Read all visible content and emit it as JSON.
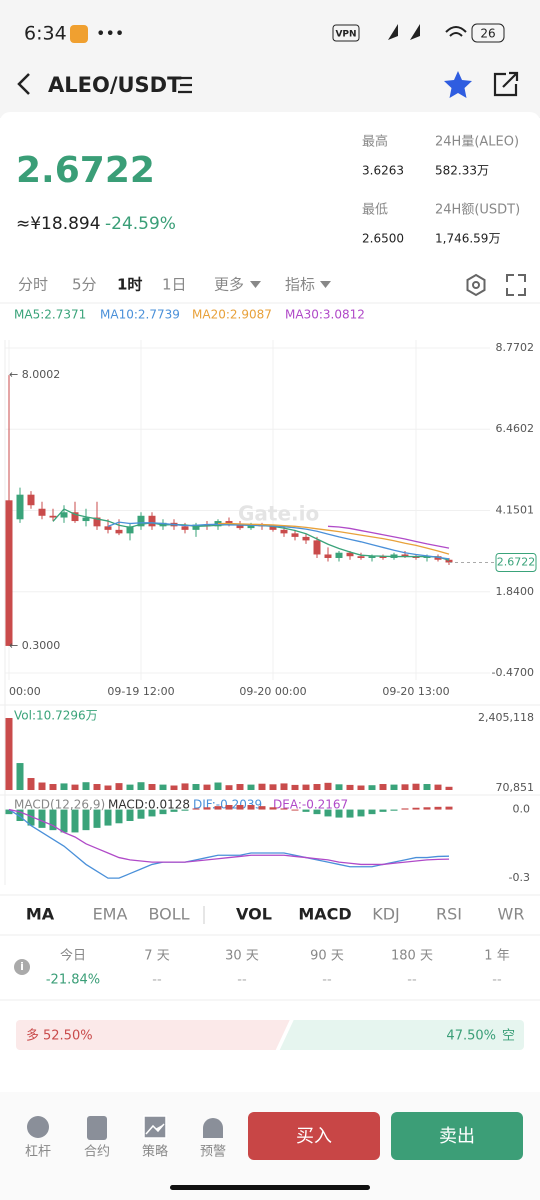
{
  "status": {
    "time": "6:34",
    "vpn": "VPN",
    "battery": "26"
  },
  "header": {
    "pair": "ALEO/USDT"
  },
  "price": {
    "last": "2.6722",
    "cny": "≈¥18.894",
    "change": "-24.59%"
  },
  "stats": [
    {
      "label": "最高",
      "value": "3.6263"
    },
    {
      "label": "24H量(ALEO)",
      "value": "582.33万"
    },
    {
      "label": "最低",
      "value": "2.6500"
    },
    {
      "label": "24H额(USDT)",
      "value": "1,746.59万"
    }
  ],
  "intervals": [
    "分时",
    "5分",
    "1时",
    "1日",
    "更多",
    "指标"
  ],
  "chart_data": [
    {
      "type": "candlestick",
      "up_color": "#3aa37a",
      "down_color": "#c94b4b",
      "ylim": [
        -0.47,
        8.7702
      ],
      "yticks": [
        8.7702,
        6.4602,
        4.1501,
        {
          "value": 1.84,
          "label": "1.8400"
        },
        {
          "value": -0.47,
          "label": "-0.4700"
        }
      ],
      "grid": true,
      "last": 2.6722,
      "watermark": "Gate.io",
      "annotations": [
        {
          "value": 8.0002,
          "label": "← 8.0002"
        },
        {
          "value": 0.3,
          "label": "← 0.3000"
        }
      ],
      "categories": [
        "00:00",
        null,
        null,
        null,
        null,
        null,
        null,
        null,
        null,
        null,
        null,
        null,
        "09-19 12:00",
        null,
        null,
        null,
        null,
        null,
        null,
        null,
        null,
        null,
        null,
        null,
        "09-20 00:00",
        null,
        null,
        null,
        null,
        null,
        null,
        null,
        null,
        null,
        null,
        null,
        null,
        "09-20 13:00",
        null,
        null,
        null
      ],
      "candles": [
        [
          4.44,
          8.0002,
          0.3,
          0.3
        ],
        [
          3.9,
          4.8,
          3.8,
          4.6
        ],
        [
          4.6,
          4.7,
          4.2,
          4.3
        ],
        [
          4.2,
          4.4,
          3.9,
          4.0
        ],
        [
          4.0,
          4.2,
          3.85,
          3.95
        ],
        [
          3.95,
          4.3,
          3.8,
          4.1
        ],
        [
          4.1,
          4.4,
          3.8,
          3.85
        ],
        [
          3.85,
          4.2,
          3.7,
          3.95
        ],
        [
          3.95,
          4.4,
          3.6,
          3.7
        ],
        [
          3.7,
          3.9,
          3.5,
          3.6
        ],
        [
          3.6,
          3.9,
          3.45,
          3.5
        ],
        [
          3.5,
          3.8,
          3.3,
          3.7
        ],
        [
          3.7,
          4.1,
          3.6,
          4.0
        ],
        [
          4.0,
          4.1,
          3.6,
          3.7
        ],
        [
          3.7,
          3.9,
          3.6,
          3.8
        ],
        [
          3.8,
          3.9,
          3.6,
          3.7
        ],
        [
          3.7,
          3.8,
          3.5,
          3.6
        ],
        [
          3.6,
          3.8,
          3.4,
          3.75
        ],
        [
          3.75,
          3.85,
          3.6,
          3.7
        ],
        [
          3.7,
          3.9,
          3.6,
          3.85
        ],
        [
          3.85,
          3.95,
          3.7,
          3.75
        ],
        [
          3.75,
          3.85,
          3.6,
          3.65
        ],
        [
          3.65,
          3.8,
          3.6,
          3.75
        ],
        [
          3.75,
          3.8,
          3.6,
          3.7
        ],
        [
          3.7,
          3.75,
          3.55,
          3.6
        ],
        [
          3.6,
          3.7,
          3.4,
          3.5
        ],
        [
          3.5,
          3.6,
          3.3,
          3.4
        ],
        [
          3.4,
          3.5,
          3.2,
          3.3
        ],
        [
          3.3,
          3.4,
          2.8,
          2.9
        ],
        [
          2.9,
          3.1,
          2.7,
          2.8
        ],
        [
          2.8,
          3.0,
          2.7,
          2.95
        ],
        [
          2.95,
          3.0,
          2.75,
          2.85
        ],
        [
          2.85,
          2.95,
          2.75,
          2.8
        ],
        [
          2.8,
          2.9,
          2.7,
          2.85
        ],
        [
          2.85,
          2.9,
          2.75,
          2.8
        ],
        [
          2.8,
          2.95,
          2.75,
          2.9
        ],
        [
          2.9,
          3.0,
          2.8,
          2.85
        ],
        [
          2.85,
          2.9,
          2.75,
          2.8
        ],
        [
          2.8,
          2.9,
          2.7,
          2.85
        ],
        [
          2.85,
          2.9,
          2.7,
          2.75
        ],
        [
          2.75,
          2.8,
          2.6,
          2.6722
        ]
      ],
      "ma": [
        {
          "label": "MA5:2.7371",
          "color": "#3aa37a",
          "values": [
            null,
            null,
            null,
            null,
            3.84,
            4.19,
            4.04,
            3.97,
            3.91,
            3.85,
            3.73,
            3.67,
            3.76,
            3.8,
            3.74,
            3.75,
            3.74,
            3.7,
            3.71,
            3.73,
            3.75,
            3.74,
            3.73,
            3.72,
            3.7,
            3.65,
            3.58,
            3.49,
            3.34,
            3.19,
            3.07,
            2.97,
            2.88,
            2.86,
            2.85,
            2.84,
            2.84,
            2.84,
            2.84,
            2.83,
            2.7371
          ]
        },
        {
          "label": "MA10:2.7739",
          "color": "#4a90d9",
          "values": [
            null,
            null,
            null,
            null,
            null,
            null,
            null,
            null,
            null,
            3.7,
            3.82,
            3.78,
            3.8,
            3.8,
            3.78,
            3.75,
            3.72,
            3.73,
            3.75,
            3.76,
            3.74,
            3.74,
            3.73,
            3.72,
            3.71,
            3.69,
            3.66,
            3.62,
            3.56,
            3.48,
            3.4,
            3.33,
            3.26,
            3.18,
            3.1,
            3.02,
            2.95,
            2.9,
            2.86,
            2.82,
            2.7739
          ]
        },
        {
          "label": "MA20:2.9087",
          "color": "#e8a13a",
          "values": [
            null,
            null,
            null,
            null,
            null,
            null,
            null,
            null,
            null,
            null,
            null,
            null,
            null,
            null,
            null,
            null,
            null,
            null,
            null,
            3.78,
            3.78,
            3.77,
            3.76,
            3.75,
            3.74,
            3.72,
            3.7,
            3.67,
            3.63,
            3.59,
            3.55,
            3.5,
            3.45,
            3.4,
            3.35,
            3.29,
            3.22,
            3.16,
            3.08,
            3.0,
            2.9087
          ]
        },
        {
          "label": "MA30:3.0812",
          "color": "#b04ac8",
          "values": [
            null,
            null,
            null,
            null,
            null,
            null,
            null,
            null,
            null,
            null,
            null,
            null,
            null,
            null,
            null,
            null,
            null,
            null,
            null,
            null,
            null,
            null,
            null,
            null,
            null,
            null,
            null,
            null,
            null,
            3.7,
            3.68,
            3.64,
            3.58,
            3.52,
            3.46,
            3.4,
            3.34,
            3.27,
            3.2,
            3.14,
            3.0812
          ]
        }
      ]
    },
    {
      "type": "bar",
      "title": "Vol:10.7296万",
      "ylim": [
        0,
        2405118
      ],
      "yticks": [
        {
          "value": 2405118,
          "label": "2,405,118"
        },
        {
          "value": 70851,
          "label": "70,851"
        }
      ],
      "values": [
        2405118,
        900000,
        400000,
        250000,
        200000,
        220000,
        180000,
        260000,
        200000,
        150000,
        230000,
        180000,
        260000,
        200000,
        180000,
        150000,
        220000,
        200000,
        180000,
        250000,
        160000,
        200000,
        180000,
        210000,
        190000,
        220000,
        170000,
        180000,
        200000,
        240000,
        190000,
        170000,
        150000,
        160000,
        200000,
        180000,
        190000,
        210000,
        200000,
        180000,
        107296
      ]
    },
    {
      "type": "macd",
      "labels": [
        "MACD(12,26,9)",
        "MACD:0.0128",
        "DIF:-0.2039",
        "DEA:-0.2167"
      ],
      "ylim": [
        -0.33,
        0.02
      ],
      "yticks": [
        {
          "value": 0,
          "label": "0.0"
        },
        -0.3
      ],
      "pos_color": "#c94b4b",
      "neg_color": "#3aa37a",
      "dif_color": "#4a90d9",
      "dea_color": "#b04ac8",
      "histogram": [
        -0.02,
        -0.05,
        -0.07,
        -0.08,
        -0.09,
        -0.1,
        -0.1,
        -0.09,
        -0.08,
        -0.07,
        -0.06,
        -0.05,
        -0.04,
        -0.03,
        -0.02,
        -0.01,
        -0.005,
        0.005,
        0.01,
        0.015,
        0.02,
        0.02,
        0.02,
        0.015,
        0.01,
        0.005,
        0,
        -0.01,
        -0.02,
        -0.03,
        -0.035,
        -0.035,
        -0.03,
        -0.02,
        -0.01,
        -0.005,
        0.005,
        0.008,
        0.01,
        0.012,
        0.0128
      ],
      "dif": [
        0,
        -0.03,
        -0.07,
        -0.1,
        -0.13,
        -0.16,
        -0.2,
        -0.24,
        -0.27,
        -0.3,
        -0.3,
        -0.28,
        -0.26,
        -0.24,
        -0.23,
        -0.23,
        -0.23,
        -0.22,
        -0.21,
        -0.2,
        -0.2,
        -0.2,
        -0.19,
        -0.19,
        -0.19,
        -0.19,
        -0.2,
        -0.21,
        -0.22,
        -0.23,
        -0.24,
        -0.25,
        -0.25,
        -0.25,
        -0.24,
        -0.23,
        -0.22,
        -0.21,
        -0.21,
        -0.205,
        -0.2039
      ],
      "dea": [
        0,
        -0.01,
        -0.03,
        -0.05,
        -0.07,
        -0.1,
        -0.12,
        -0.15,
        -0.17,
        -0.19,
        -0.21,
        -0.22,
        -0.225,
        -0.23,
        -0.23,
        -0.23,
        -0.23,
        -0.225,
        -0.22,
        -0.215,
        -0.21,
        -0.205,
        -0.2,
        -0.2,
        -0.2,
        -0.2,
        -0.205,
        -0.21,
        -0.215,
        -0.22,
        -0.23,
        -0.235,
        -0.24,
        -0.24,
        -0.24,
        -0.235,
        -0.23,
        -0.225,
        -0.22,
        -0.218,
        -0.2167
      ]
    }
  ],
  "indicator_tabs": {
    "main": [
      "MA",
      "EMA",
      "BOLL"
    ],
    "sub": [
      "VOL",
      "MACD",
      "KDJ",
      "RSI",
      "WR"
    ]
  },
  "performance": [
    {
      "period": "今日",
      "change": "-21.84%"
    },
    {
      "period": "7 天",
      "change": "--"
    },
    {
      "period": "30 天",
      "change": "--"
    },
    {
      "period": "90 天",
      "change": "--"
    },
    {
      "period": "180 天",
      "change": "--"
    },
    {
      "period": "1 年",
      "change": "--"
    }
  ],
  "sentiment": {
    "long_text": "多",
    "long": 52.5,
    "long_label": "52.50%",
    "short": 47.5,
    "short_label": "47.50%",
    "short_text": "空"
  },
  "nav": [
    "杠杆",
    "合约",
    "策略",
    "预警"
  ],
  "buttons": {
    "buy": "买入",
    "sell": "卖出"
  }
}
